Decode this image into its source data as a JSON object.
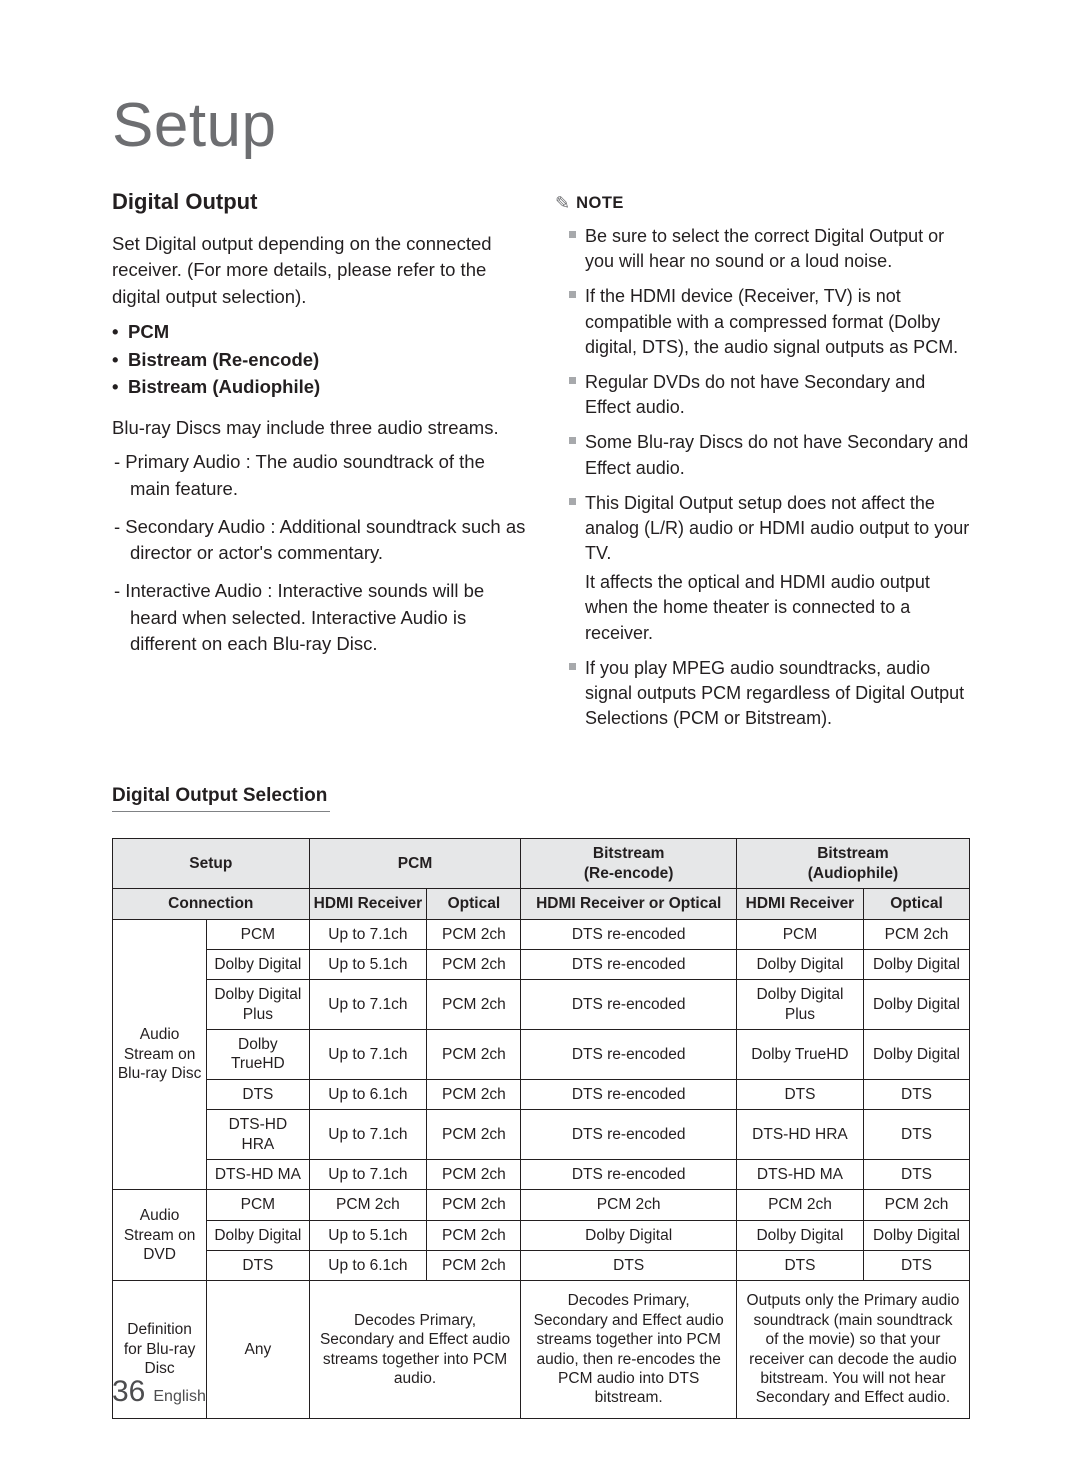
{
  "page_title": "Setup",
  "page_number": "36",
  "language": "English",
  "left": {
    "section_title": "Digital Output",
    "intro": "Set Digital output depending on the connected receiver. (For more details, please refer to the digital output selection).",
    "options": [
      "PCM",
      "Bistream (Re-encode)",
      "Bistream (Audiophile)"
    ],
    "streams_intro": "Blu-ray Discs may include three audio streams.",
    "streams": [
      "- Primary Audio : The audio soundtrack of the main feature.",
      "- Secondary Audio : Additional soundtrack such as director or actor's commentary.",
      "- Interactive Audio : Interactive sounds will be heard when selected. Interactive Audio is different on each Blu-ray Disc."
    ]
  },
  "note": {
    "label": "NOTE",
    "items": [
      "Be sure to select the correct Digital Output or you will hear no sound or a loud noise.",
      "If the HDMI device (Receiver, TV) is not compatible with a compressed format (Dolby digital, DTS), the audio signal outputs as PCM.",
      "Regular DVDs do not have Secondary and Effect audio.",
      "Some Blu-ray Discs do not have Secondary and Effect audio.",
      "This Digital Output setup does not affect the analog (L/R) audio or HDMI audio output to your TV.",
      "If you play MPEG audio soundtracks, audio signal outputs PCM regardless of Digital Output Selections (PCM or Bitstream)."
    ],
    "continuation_after_index": 4,
    "continuation_text": "It affects the optical and HDMI audio output when the home theater is connected to a receiver."
  },
  "table_title": "Digital Output Selection",
  "table": {
    "header_row1": {
      "setup": "Setup",
      "pcm": "PCM",
      "bit_re": "Bitstream\n(Re-encode)",
      "bit_aud": "Bitstream\n(Audiophile)"
    },
    "header_row2": {
      "connection": "Connection",
      "pcm_hdmi": "HDMI Receiver",
      "pcm_opt": "Optical",
      "bitre": "HDMI Receiver or Optical",
      "aud_hdmi": "HDMI Receiver",
      "aud_opt": "Optical"
    },
    "groups": [
      {
        "group_label": "Audio Stream on Blu-ray Disc",
        "rows": [
          {
            "codec": "PCM",
            "pcm_h": "Up to 7.1ch",
            "pcm_o": "PCM 2ch",
            "bitre": "DTS re-encoded",
            "aud_h": "PCM",
            "aud_o": "PCM 2ch"
          },
          {
            "codec": "Dolby Digital",
            "pcm_h": "Up to 5.1ch",
            "pcm_o": "PCM 2ch",
            "bitre": "DTS re-encoded",
            "aud_h": "Dolby Digital",
            "aud_o": "Dolby Digital"
          },
          {
            "codec": "Dolby Digital Plus",
            "pcm_h": "Up to 7.1ch",
            "pcm_o": "PCM 2ch",
            "bitre": "DTS re-encoded",
            "aud_h": "Dolby Digital Plus",
            "aud_o": "Dolby Digital"
          },
          {
            "codec": "Dolby TrueHD",
            "pcm_h": "Up to 7.1ch",
            "pcm_o": "PCM 2ch",
            "bitre": "DTS re-encoded",
            "aud_h": "Dolby TrueHD",
            "aud_o": "Dolby Digital"
          },
          {
            "codec": "DTS",
            "pcm_h": "Up to 6.1ch",
            "pcm_o": "PCM 2ch",
            "bitre": "DTS re-encoded",
            "aud_h": "DTS",
            "aud_o": "DTS"
          },
          {
            "codec": "DTS-HD HRA",
            "pcm_h": "Up to 7.1ch",
            "pcm_o": "PCM 2ch",
            "bitre": "DTS re-encoded",
            "aud_h": "DTS-HD HRA",
            "aud_o": "DTS"
          },
          {
            "codec": "DTS-HD MA",
            "pcm_h": "Up to 7.1ch",
            "pcm_o": "PCM 2ch",
            "bitre": "DTS re-encoded",
            "aud_h": "DTS-HD MA",
            "aud_o": "DTS"
          }
        ]
      },
      {
        "group_label": "Audio Stream on DVD",
        "rows": [
          {
            "codec": "PCM",
            "pcm_h": "PCM 2ch",
            "pcm_o": "PCM 2ch",
            "bitre": "PCM 2ch",
            "aud_h": "PCM 2ch",
            "aud_o": "PCM 2ch"
          },
          {
            "codec": "Dolby Digital",
            "pcm_h": "Up to 5.1ch",
            "pcm_o": "PCM 2ch",
            "bitre": "Dolby Digital",
            "aud_h": "Dolby Digital",
            "aud_o": "Dolby Digital"
          },
          {
            "codec": "DTS",
            "pcm_h": "Up to 6.1ch",
            "pcm_o": "PCM 2ch",
            "bitre": "DTS",
            "aud_h": "DTS",
            "aud_o": "DTS"
          }
        ]
      }
    ],
    "definition": {
      "label": "Definition for Blu-ray Disc",
      "codec": "Any",
      "pcm": "Decodes Primary, Secondary and Effect audio streams together into PCM audio.",
      "bitre": "Decodes Primary, Secondary and Effect audio streams together into PCM audio, then re-encodes the PCM audio into DTS bitstream.",
      "aud": "Outputs only the Primary audio soundtrack (main soundtrack of the movie) so that your receiver can decode the audio bitstream. You will not hear Secondary and Effect audio."
    }
  }
}
